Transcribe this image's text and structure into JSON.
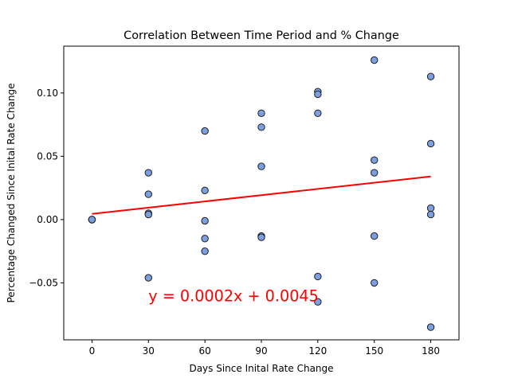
{
  "chart_data": {
    "type": "scatter",
    "title": "Correlation Between Time Period and % Change",
    "xlabel": "Days Since Inital Rate Change",
    "ylabel": "Percentage Changed Since Inital Rate Change",
    "xlim": [
      -15,
      195
    ],
    "ylim": [
      -0.095,
      0.137
    ],
    "xticks": [
      0,
      30,
      60,
      90,
      120,
      150,
      180
    ],
    "yticks": [
      -0.05,
      0.0,
      0.05,
      0.1
    ],
    "ytick_labels": [
      "−0.05",
      "0.00",
      "0.05",
      "0.10"
    ],
    "grid": false,
    "colors": {
      "marker": "#7b9fe0",
      "edge": "#1f1f1f",
      "regression": "#ff0000",
      "annotation": "#ff0000"
    },
    "points": [
      {
        "x": 0,
        "y": 0.0
      },
      {
        "x": 0,
        "y": 0.0
      },
      {
        "x": 0,
        "y": 0.0
      },
      {
        "x": 0,
        "y": 0.0
      },
      {
        "x": 0,
        "y": 0.0
      },
      {
        "x": 0,
        "y": 0.0
      },
      {
        "x": 30,
        "y": 0.037
      },
      {
        "x": 30,
        "y": 0.02
      },
      {
        "x": 30,
        "y": 0.005
      },
      {
        "x": 30,
        "y": 0.004
      },
      {
        "x": 30,
        "y": -0.046
      },
      {
        "x": 60,
        "y": 0.07
      },
      {
        "x": 60,
        "y": 0.023
      },
      {
        "x": 60,
        "y": -0.001
      },
      {
        "x": 60,
        "y": -0.015
      },
      {
        "x": 60,
        "y": -0.025
      },
      {
        "x": 90,
        "y": 0.084
      },
      {
        "x": 90,
        "y": 0.073
      },
      {
        "x": 90,
        "y": 0.042
      },
      {
        "x": 90,
        "y": -0.013
      },
      {
        "x": 90,
        "y": -0.014
      },
      {
        "x": 120,
        "y": 0.101
      },
      {
        "x": 120,
        "y": 0.099
      },
      {
        "x": 120,
        "y": 0.084
      },
      {
        "x": 120,
        "y": -0.045
      },
      {
        "x": 120,
        "y": -0.065
      },
      {
        "x": 150,
        "y": 0.126
      },
      {
        "x": 150,
        "y": 0.047
      },
      {
        "x": 150,
        "y": 0.037
      },
      {
        "x": 150,
        "y": -0.013
      },
      {
        "x": 150,
        "y": -0.05
      },
      {
        "x": 180,
        "y": 0.113
      },
      {
        "x": 180,
        "y": 0.06
      },
      {
        "x": 180,
        "y": 0.009
      },
      {
        "x": 180,
        "y": 0.004
      },
      {
        "x": 180,
        "y": -0.085
      }
    ],
    "regression": {
      "slope": 0.000164,
      "intercept": 0.0045,
      "x_range": [
        0,
        180
      ]
    },
    "annotation": {
      "text": "y = 0.0002x + 0.0045",
      "x": 30,
      "y": -0.06
    }
  }
}
